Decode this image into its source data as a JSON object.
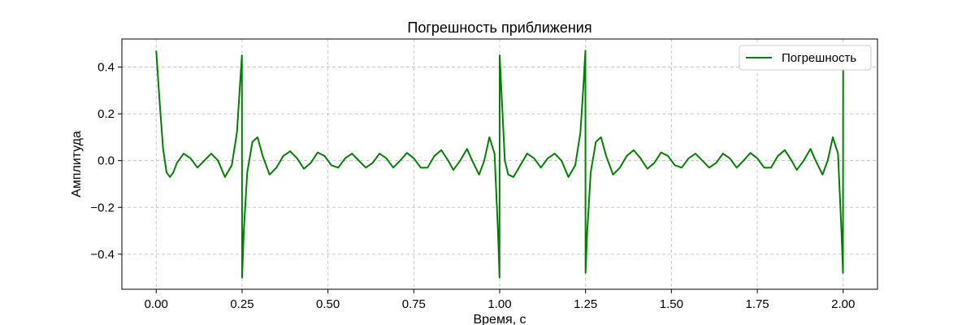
{
  "chart_data": {
    "type": "line",
    "title": "Погрешность приближения",
    "xlabel": "Время, с",
    "ylabel": "Амплитуда",
    "xlim": [
      -0.1,
      2.1
    ],
    "ylim": [
      -0.55,
      0.52
    ],
    "xticks": [
      0.0,
      0.25,
      0.5,
      0.75,
      1.0,
      1.25,
      1.5,
      1.75,
      2.0
    ],
    "xtick_labels": [
      "0.00",
      "0.25",
      "0.50",
      "0.75",
      "1.00",
      "1.25",
      "1.50",
      "1.75",
      "2.00"
    ],
    "yticks": [
      -0.4,
      -0.2,
      0.0,
      0.2,
      0.4
    ],
    "ytick_labels": [
      "−0.4",
      "−0.2",
      "0.0",
      "0.2",
      "0.4"
    ],
    "grid": true,
    "legend_position": "top-right",
    "series": [
      {
        "name": "Погрешность",
        "color": "#008000",
        "x": [
          0.0,
          0.01,
          0.02,
          0.03,
          0.04,
          0.05,
          0.06,
          0.08,
          0.1,
          0.12,
          0.14,
          0.16,
          0.18,
          0.2,
          0.22,
          0.235,
          0.245,
          0.2495,
          0.25,
          0.255,
          0.265,
          0.28,
          0.295,
          0.31,
          0.33,
          0.35,
          0.37,
          0.39,
          0.41,
          0.43,
          0.45,
          0.47,
          0.49,
          0.51,
          0.53,
          0.55,
          0.57,
          0.59,
          0.61,
          0.63,
          0.65,
          0.67,
          0.69,
          0.71,
          0.73,
          0.75,
          0.77,
          0.79,
          0.81,
          0.83,
          0.85,
          0.865,
          0.885,
          0.905,
          0.92,
          0.94,
          0.955,
          0.97,
          0.985,
          0.995,
          0.9995,
          1.0,
          1.005,
          1.015,
          1.025,
          1.04,
          1.06,
          1.08,
          1.1,
          1.12,
          1.14,
          1.16,
          1.18,
          1.2,
          1.22,
          1.235,
          1.245,
          1.2495,
          1.25,
          1.255,
          1.265,
          1.28,
          1.295,
          1.31,
          1.33,
          1.35,
          1.37,
          1.39,
          1.41,
          1.43,
          1.45,
          1.47,
          1.49,
          1.51,
          1.53,
          1.55,
          1.57,
          1.59,
          1.61,
          1.63,
          1.65,
          1.67,
          1.69,
          1.71,
          1.73,
          1.75,
          1.77,
          1.79,
          1.81,
          1.83,
          1.85,
          1.865,
          1.885,
          1.905,
          1.92,
          1.94,
          1.955,
          1.97,
          1.985,
          1.995,
          1.9995,
          2.0
        ],
        "y": [
          0.47,
          0.25,
          0.05,
          -0.05,
          -0.07,
          -0.05,
          -0.01,
          0.03,
          0.01,
          -0.03,
          0.0,
          0.03,
          0.0,
          -0.07,
          -0.02,
          0.12,
          0.35,
          0.45,
          -0.5,
          -0.3,
          -0.05,
          0.08,
          0.1,
          0.02,
          -0.06,
          -0.03,
          0.02,
          0.04,
          0.01,
          -0.035,
          -0.01,
          0.035,
          0.02,
          -0.02,
          -0.03,
          0.01,
          0.03,
          0.0,
          -0.03,
          -0.01,
          0.03,
          0.01,
          -0.03,
          0.0,
          0.033,
          0.01,
          -0.03,
          -0.03,
          0.02,
          0.045,
          0.0,
          -0.04,
          0.0,
          0.05,
          0.0,
          -0.06,
          0.0,
          0.1,
          0.03,
          -0.3,
          -0.5,
          0.45,
          0.3,
          0.0,
          -0.06,
          -0.07,
          -0.02,
          0.03,
          0.01,
          -0.03,
          0.01,
          0.03,
          0.0,
          -0.07,
          -0.02,
          0.12,
          0.35,
          0.47,
          -0.48,
          -0.3,
          -0.05,
          0.08,
          0.1,
          0.02,
          -0.06,
          -0.03,
          0.02,
          0.045,
          0.01,
          -0.035,
          -0.01,
          0.035,
          0.02,
          -0.02,
          -0.03,
          0.01,
          0.03,
          0.0,
          -0.03,
          -0.01,
          0.03,
          0.01,
          -0.03,
          0.0,
          0.033,
          0.01,
          -0.03,
          -0.03,
          0.02,
          0.045,
          0.0,
          -0.04,
          0.0,
          0.05,
          0.0,
          -0.06,
          0.0,
          0.1,
          0.03,
          -0.3,
          -0.48,
          0.44
        ]
      }
    ]
  }
}
